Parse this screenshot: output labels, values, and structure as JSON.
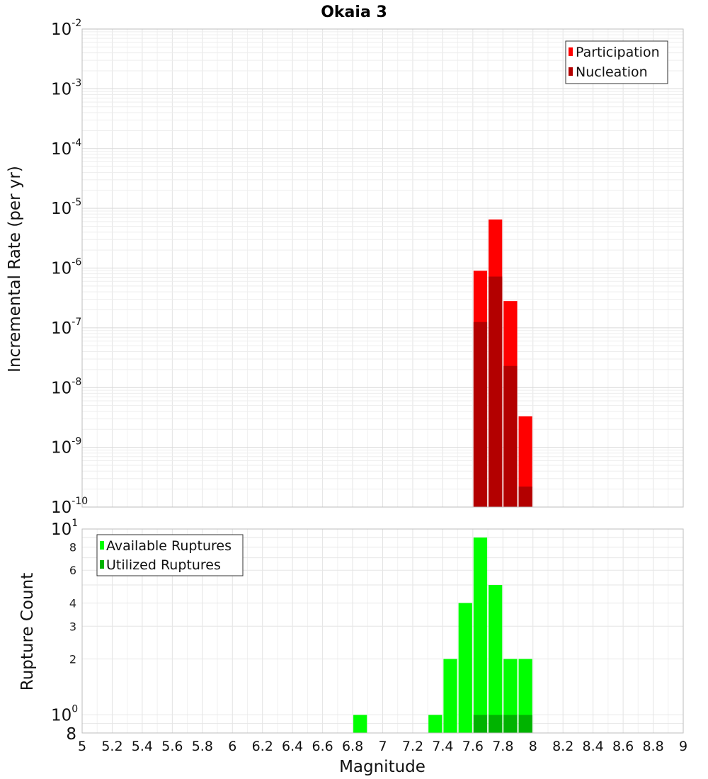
{
  "chart_data": [
    {
      "type": "bar",
      "title": "Okaia 3",
      "xlabel": "Magnitude",
      "ylabel": "Incremental Rate (per yr)",
      "yscale": "log",
      "xlim": [
        5,
        9
      ],
      "ylim": [
        1e-10,
        0.01
      ],
      "grid": true,
      "legend_position": "top-right",
      "bin_width": 0.1,
      "series": [
        {
          "name": "Participation",
          "color": "#ff0000",
          "x": [
            7.65,
            7.75,
            7.85,
            7.95
          ],
          "values": [
            9e-07,
            6.5e-06,
            2.8e-07,
            3.3e-09
          ]
        },
        {
          "name": "Nucleation",
          "color": "#b30000",
          "x": [
            7.65,
            7.75,
            7.85,
            7.95
          ],
          "values": [
            1.25e-07,
            7.2e-07,
            2.3e-08,
            2.2e-10
          ]
        }
      ]
    },
    {
      "type": "bar",
      "xlabel": "Magnitude",
      "ylabel": "Rupture Count",
      "yscale": "log",
      "xlim": [
        5,
        9
      ],
      "ylim": [
        0.8,
        10
      ],
      "grid": true,
      "legend_position": "top-left",
      "bin_width": 0.1,
      "series": [
        {
          "name": "Available Ruptures",
          "color": "#00ff00",
          "x": [
            6.85,
            7.35,
            7.45,
            7.55,
            7.65,
            7.75,
            7.85,
            7.95
          ],
          "values": [
            1,
            1,
            2,
            4,
            9,
            5,
            2,
            2
          ]
        },
        {
          "name": "Utilized Ruptures",
          "color": "#00b300",
          "x": [
            7.65,
            7.75,
            7.85,
            7.95
          ],
          "values": [
            1,
            1,
            1,
            1
          ]
        }
      ]
    }
  ],
  "x_ticks": [
    "5",
    "5.2",
    "5.4",
    "5.6",
    "5.8",
    "6",
    "6.2",
    "6.4",
    "6.6",
    "6.8",
    "7",
    "7.2",
    "7.4",
    "7.6",
    "7.8",
    "8",
    "8.2",
    "8.4",
    "8.6",
    "8.8",
    "9"
  ],
  "top_y_ticks": [
    {
      "base": "10",
      "exp": "-2"
    },
    {
      "base": "10",
      "exp": "-3"
    },
    {
      "base": "10",
      "exp": "-4"
    },
    {
      "base": "10",
      "exp": "-5"
    },
    {
      "base": "10",
      "exp": "-6"
    },
    {
      "base": "10",
      "exp": "-7"
    },
    {
      "base": "10",
      "exp": "-8"
    },
    {
      "base": "10",
      "exp": "-9"
    },
    {
      "base": "10",
      "exp": "-10"
    }
  ],
  "bottom_y_ticks": [
    {
      "base": "10",
      "exp": "1"
    },
    {
      "base": "10",
      "exp": "0"
    }
  ],
  "bottom_minor_labels": [
    "8",
    "6",
    "4",
    "3",
    "2"
  ],
  "bottom_axis_min_label": "8"
}
